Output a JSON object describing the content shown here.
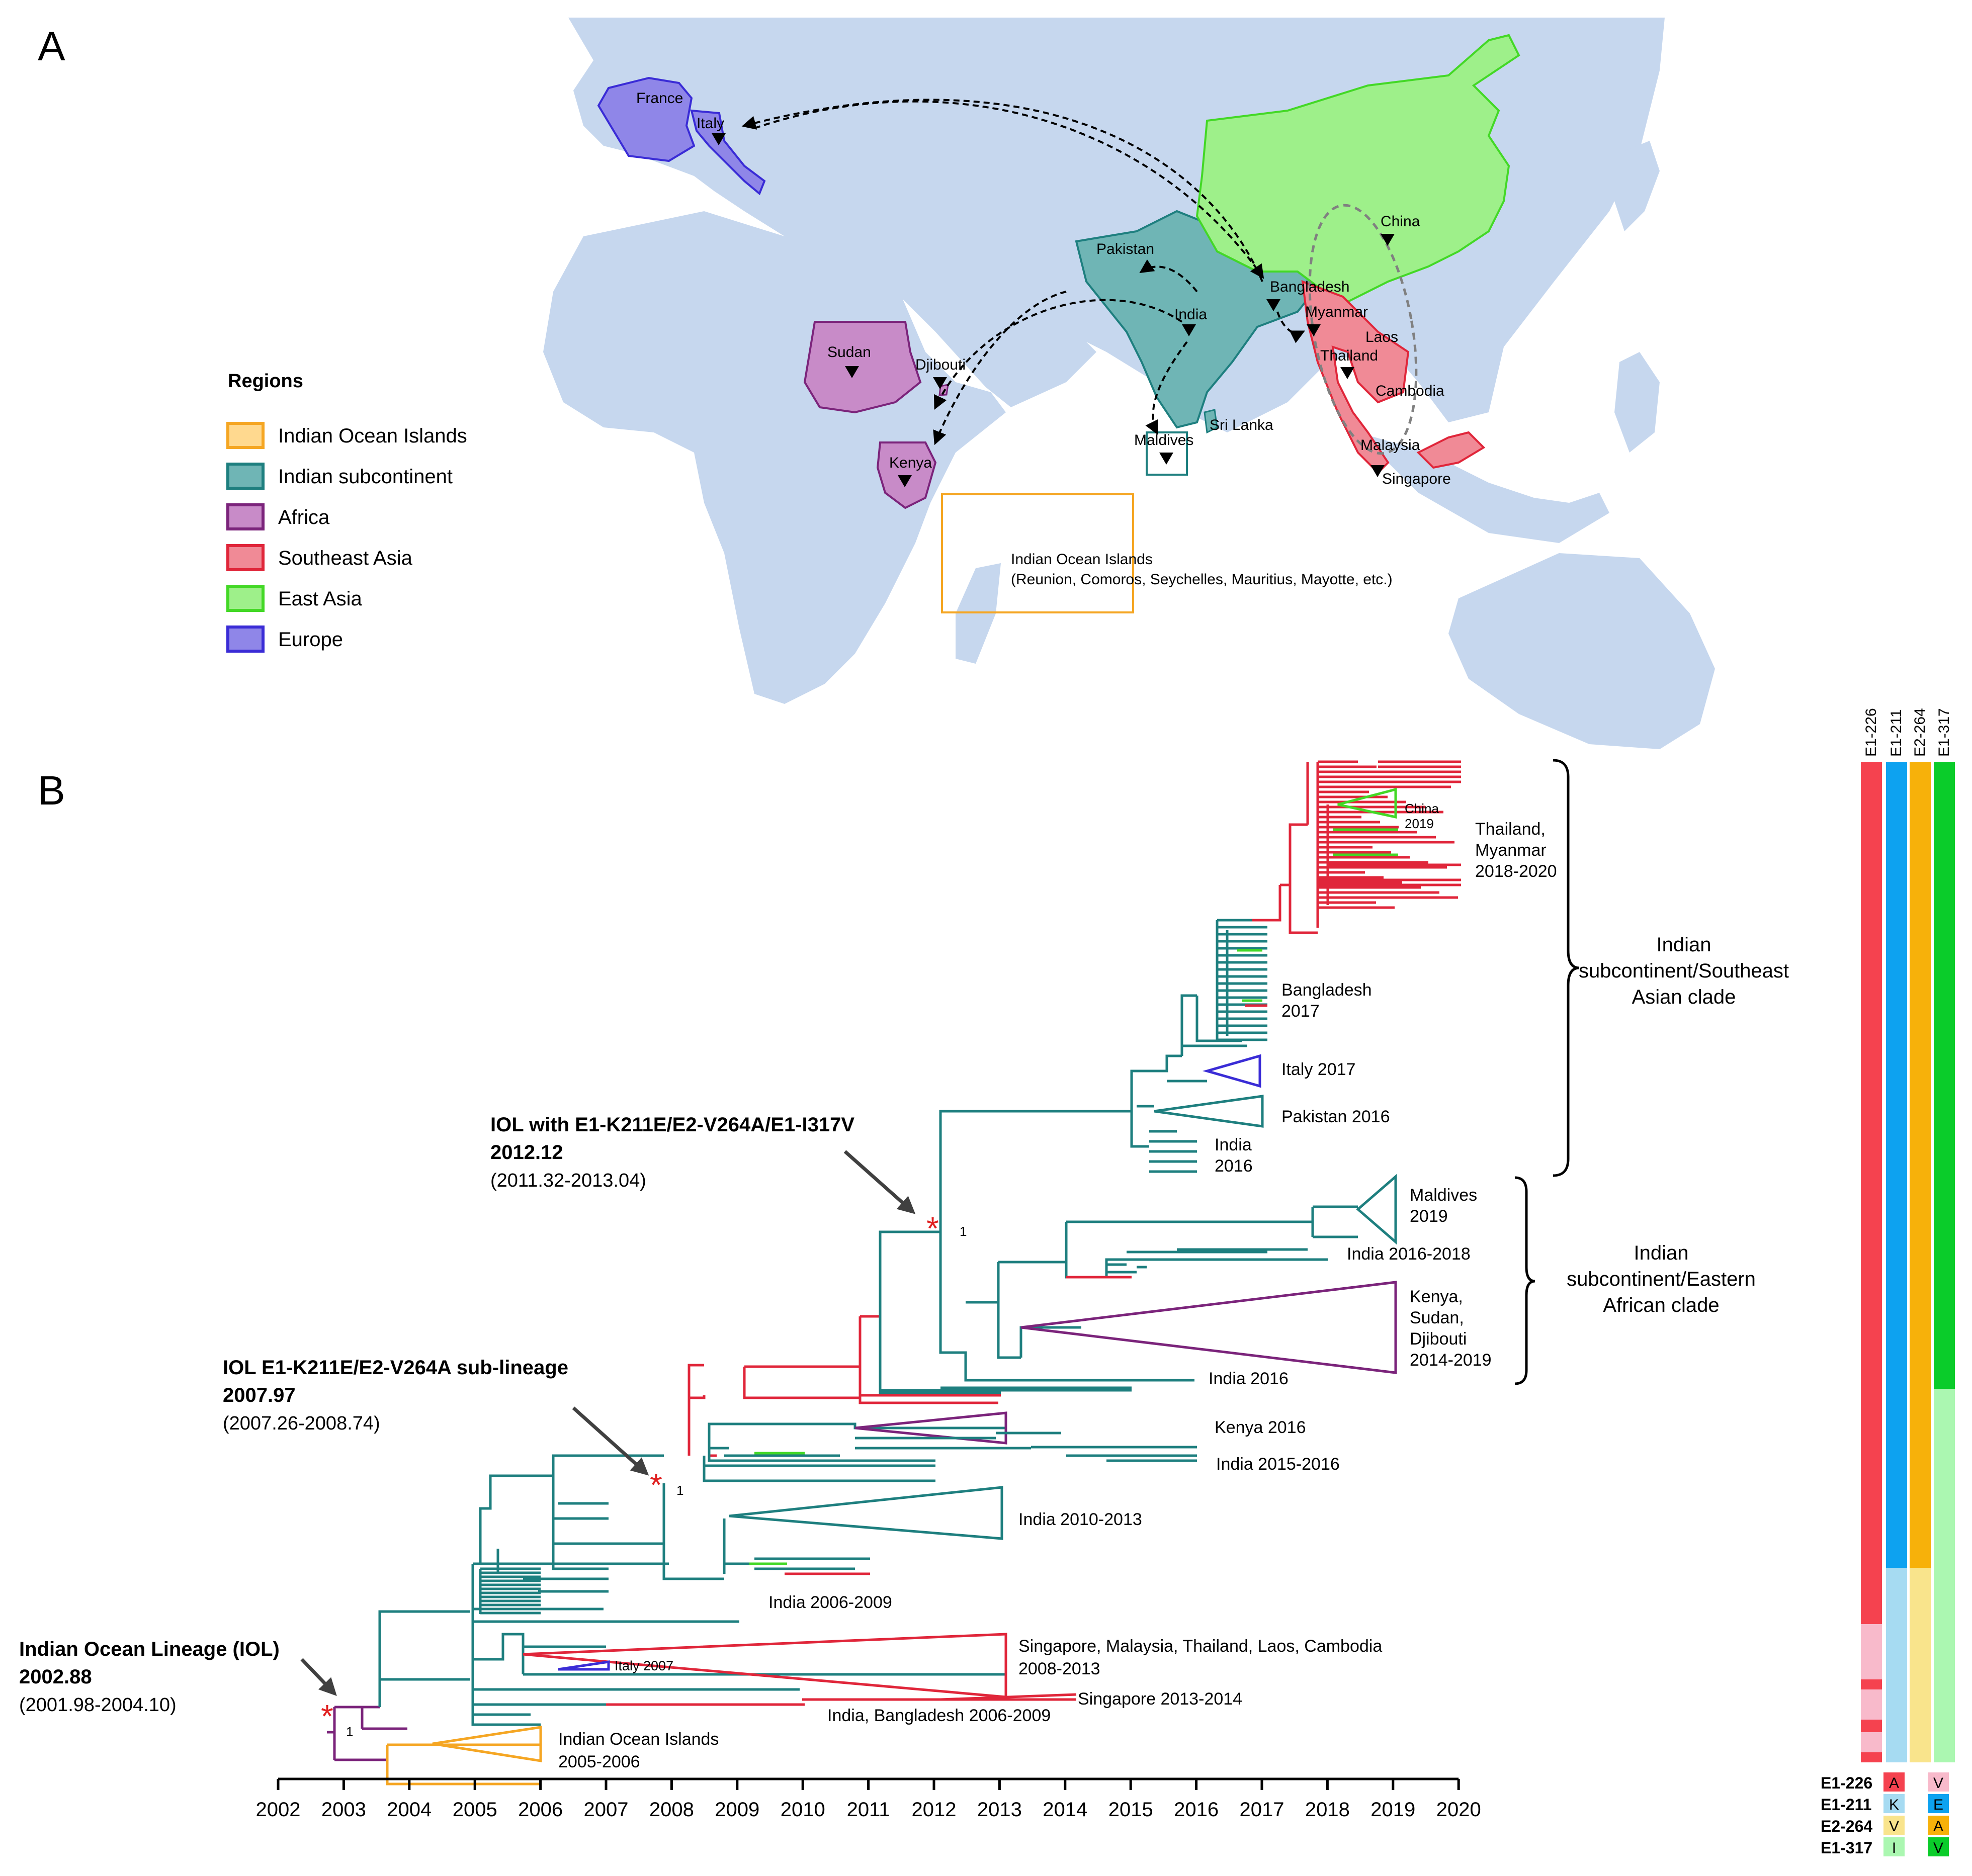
{
  "panel_a": {
    "label": "A",
    "legend_title": "Regions",
    "legend": [
      {
        "label": "Indian Ocean Islands",
        "fill": "#FFD98F",
        "stroke": "#F5A623"
      },
      {
        "label": "Indian subcontinent",
        "fill": "#6FB5B5",
        "stroke": "#1E7F7F"
      },
      {
        "label": "Africa",
        "fill": "#C88BC8",
        "stroke": "#7B247B"
      },
      {
        "label": "Southeast Asia",
        "fill": "#F08A96",
        "stroke": "#E0263A"
      },
      {
        "label": "East Asia",
        "fill": "#9EF08A",
        "stroke": "#43D826"
      },
      {
        "label": "Europe",
        "fill": "#8F86E8",
        "stroke": "#3A2CD6"
      }
    ],
    "places": {
      "france": "France",
      "italy": "Italy",
      "sudan": "Sudan",
      "djibouti": "Djibouti",
      "kenya": "Kenya",
      "pakistan": "Pakistan",
      "india": "India",
      "bangladesh": "Bangladesh",
      "myanmar": "Myanmar",
      "laos": "Laos",
      "thailand": "Thailand",
      "cambodia": "Cambodia",
      "malaysia": "Malaysia",
      "singapore": "Singapore",
      "china": "China",
      "sri_lanka": "Sri Lanka",
      "maldives": "Maldives",
      "ioi": "Indian Ocean Islands",
      "ioi_sub": "(Reunion, Comoros, Seychelles, Mauritius, Mayotte, etc.)"
    },
    "colors": {
      "ocean": "#FFFFFF",
      "land": "#C6D7EE",
      "border": "#FFFFFF"
    }
  },
  "panel_b": {
    "label": "B",
    "axis_years": [
      "2002",
      "2003",
      "2004",
      "2005",
      "2006",
      "2007",
      "2008",
      "2009",
      "2010",
      "2011",
      "2012",
      "2013",
      "2014",
      "2015",
      "2016",
      "2017",
      "2018",
      "2019",
      "2020"
    ],
    "nodes": {
      "iol": {
        "title": "Indian Ocean Lineage (IOL)",
        "date": "2002.88",
        "ci": "(2001.98-2004.10)",
        "support": "1"
      },
      "sub": {
        "title": "IOL E1-K211E/E2-V264A sub-lineage",
        "date": "2007.97",
        "ci": "(2007.26-2008.74)",
        "support": "1"
      },
      "iolv": {
        "title": "IOL with E1-K211E/E2-V264A/E1-I317V",
        "date": "2012.12",
        "ci": "(2011.32-2013.04)",
        "support": "1"
      }
    },
    "tip_labels": {
      "china": [
        "China",
        "2019"
      ],
      "thai": [
        "Thailand,",
        "Myanmar",
        "2018-2020"
      ],
      "bangladesh": [
        "Bangladesh",
        "2017"
      ],
      "italy2017": "Italy 2017",
      "pakistan": "Pakistan 2016",
      "india2016a": [
        "India",
        "2016"
      ],
      "maldives": [
        "Maldives",
        "2019"
      ],
      "india1618": "India 2016-2018",
      "kenya_sud": [
        "Kenya,",
        "Sudan,",
        "Djibouti",
        "2014-2019"
      ],
      "india2016b": "India 2016",
      "kenya2016": "Kenya 2016",
      "india1516": "India 2015-2016",
      "india1013": "India 2010-2013",
      "india0609": "India 2006-2009",
      "sing_mal": [
        "Singapore, Malaysia, Thailand, Laos, Cambodia",
        "2008-2013"
      ],
      "italy2007": "Italy 2007",
      "sing1314": "Singapore 2013-2014",
      "ind_bang": "India, Bangladesh 2006-2009",
      "ioi": [
        "Indian Ocean Islands",
        "2005-2006"
      ]
    },
    "clades": {
      "se_asian": [
        "Indian",
        "subcontinent/Southeast",
        "Asian clade"
      ],
      "e_african": [
        "Indian",
        "subcontinent/Eastern",
        "African clade"
      ]
    },
    "mutation_columns": [
      "E1-226",
      "E1-211",
      "E2-264",
      "E1-317"
    ],
    "mutation_legend": [
      {
        "site": "E1-226",
        "a": "A",
        "b": "V"
      },
      {
        "site": "E1-211",
        "a": "K",
        "b": "E"
      },
      {
        "site": "E2-264",
        "a": "V",
        "b": "A"
      },
      {
        "site": "E1-317",
        "a": "I",
        "b": "V"
      }
    ],
    "colors": {
      "teal": "#1E7F7F",
      "red": "#E0263A",
      "green": "#43D826",
      "purple": "#7B247B",
      "blue": "#3A2CD6",
      "orange": "#F5A623",
      "star": "#E02020",
      "arrow": "#404040",
      "E1_226_A": "#F5424F",
      "E1_226_V": "#F8BACB",
      "E1_211_K": "#A6DBF2",
      "E1_211_E": "#0DA2F0",
      "E2_264_V": "#F9E48C",
      "E2_264_A": "#F7B10A",
      "E1_317_I": "#ABF7B1",
      "E1_317_V": "#0ACC2A"
    }
  }
}
